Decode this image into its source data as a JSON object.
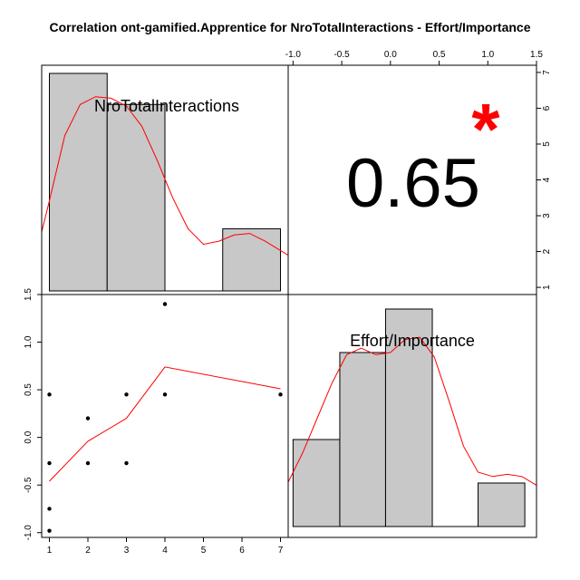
{
  "chart_data": {
    "type": "pairs",
    "title": "Correlation ont-gamified.Apprentice for NroTotalInteractions - Effort/Importance",
    "variables": [
      "NroTotalInteractions",
      "Effort/Importance"
    ],
    "correlation": {
      "value": "0.65",
      "significance": "*"
    },
    "axes": {
      "x_bottom": {
        "variable": "NroTotalInteractions",
        "range": [
          0.8,
          7.2
        ],
        "ticks": [
          "1",
          "2",
          "3",
          "4",
          "5",
          "6",
          "7"
        ]
      },
      "x_top": {
        "variable": "Effort/Importance",
        "range": [
          -1.05,
          1.5
        ],
        "ticks": [
          "-1.0",
          "-0.5",
          "0.0",
          "0.5",
          "1.0",
          "1.5"
        ]
      },
      "y_left": {
        "variable": "Effort/Importance",
        "range": [
          -1.05,
          1.5
        ],
        "ticks": [
          "-1.0",
          "-0.5",
          "0.0",
          "0.5",
          "1.0",
          "1.5"
        ]
      },
      "y_right": {
        "variable": "NroTotalInteractions",
        "range": [
          0.8,
          7.2
        ],
        "ticks": [
          "1",
          "2",
          "3",
          "4",
          "5",
          "6",
          "7"
        ]
      }
    },
    "histogram_x": {
      "variable": "NroTotalInteractions",
      "bin_edges": [
        1,
        2.5,
        4,
        5.5,
        7
      ],
      "heights": [
        7,
        6,
        0,
        2
      ],
      "max_height": 7,
      "density_x": [
        0.8,
        1.0,
        1.4,
        1.8,
        2.2,
        2.6,
        3.0,
        3.4,
        3.8,
        4.2,
        4.6,
        5.0,
        5.4,
        5.8,
        6.2,
        6.6,
        7.0,
        7.2
      ],
      "density_y": [
        1.9,
        2.9,
        5.0,
        6.0,
        6.25,
        6.2,
        5.95,
        5.3,
        4.2,
        3.0,
        2.0,
        1.5,
        1.6,
        1.8,
        1.85,
        1.6,
        1.3,
        1.15
      ]
    },
    "histogram_y": {
      "variable": "Effort/Importance",
      "bin_edges": [
        -1.0,
        -0.52,
        -0.05,
        0.43,
        0.9,
        1.38
      ],
      "heights": [
        2,
        4,
        5,
        0,
        1
      ],
      "max_height": 5,
      "density_x": [
        -1.05,
        -0.9,
        -0.75,
        -0.6,
        -0.45,
        -0.3,
        -0.15,
        0.0,
        0.15,
        0.3,
        0.45,
        0.6,
        0.75,
        0.9,
        1.05,
        1.2,
        1.35,
        1.5
      ],
      "density_y": [
        1.02,
        1.7,
        2.5,
        3.3,
        3.95,
        4.1,
        3.95,
        4.0,
        4.3,
        4.35,
        3.9,
        2.9,
        1.85,
        1.25,
        1.15,
        1.2,
        1.15,
        0.95
      ]
    },
    "scatter": {
      "x": [
        1,
        1,
        1,
        1,
        2,
        2,
        3,
        3,
        4,
        4,
        7
      ],
      "y": [
        0.45,
        -0.27,
        -0.75,
        -0.98,
        0.2,
        -0.27,
        0.45,
        -0.27,
        1.4,
        0.45,
        0.45
      ],
      "smooth_x": [
        1,
        2,
        3,
        4,
        7
      ],
      "smooth_y": [
        -0.46,
        -0.04,
        0.2,
        0.74,
        0.51
      ]
    },
    "colors": {
      "bar_fill": "#c8c8c8",
      "smooth_line": "#ff0000",
      "star": "#ff0000",
      "points": "#000000"
    }
  }
}
